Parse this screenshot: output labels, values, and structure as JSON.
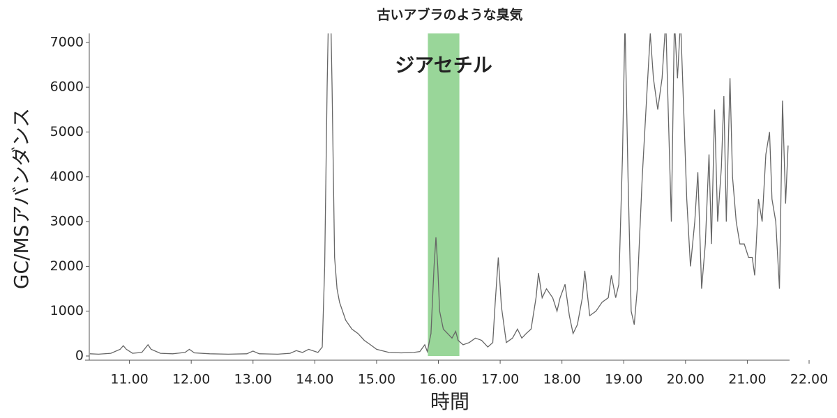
{
  "chart_data": {
    "type": "line",
    "title": "古いアブラのような臭気",
    "ylabel": "GC/MSアバンダンス",
    "xlabel": "時間",
    "xlim": [
      10.35,
      22.0
    ],
    "ylim": [
      0,
      7200
    ],
    "xticks": [
      {
        "value": 11,
        "label": "11.00"
      },
      {
        "value": 12,
        "label": "12.00"
      },
      {
        "value": 13,
        "label": "13.00"
      },
      {
        "value": 14,
        "label": "14.00"
      },
      {
        "value": 15,
        "label": "15.00"
      },
      {
        "value": 16,
        "label": "16.00"
      },
      {
        "value": 17,
        "label": "17.00"
      },
      {
        "value": 18,
        "label": "18.00"
      },
      {
        "value": 19,
        "label": "19.00"
      },
      {
        "value": 20,
        "label": "20.00"
      },
      {
        "value": 21,
        "label": "21.00"
      },
      {
        "value": 22,
        "label": "22.00"
      }
    ],
    "yticks": [
      0,
      1000,
      2000,
      3000,
      4000,
      5000,
      6000,
      7000
    ],
    "highlight": {
      "label": "ジアセチル",
      "xlim": [
        15.83,
        16.34
      ],
      "color": "#99d699",
      "label_color": "#22aa22"
    },
    "color": "#666666",
    "x": [
      10.36,
      10.5,
      10.7,
      10.85,
      10.9,
      10.95,
      11.05,
      11.2,
      11.3,
      11.35,
      11.5,
      11.7,
      11.9,
      11.97,
      12.05,
      12.3,
      12.6,
      12.9,
      13.0,
      13.1,
      13.4,
      13.6,
      13.7,
      13.8,
      13.9,
      14.05,
      14.12,
      14.16,
      14.2,
      14.24,
      14.28,
      14.32,
      14.36,
      14.4,
      14.5,
      14.6,
      14.7,
      14.8,
      14.9,
      15.0,
      15.2,
      15.4,
      15.6,
      15.7,
      15.78,
      15.82,
      15.88,
      15.93,
      15.96,
      15.99,
      16.02,
      16.08,
      16.15,
      16.22,
      16.28,
      16.32,
      16.4,
      16.5,
      16.6,
      16.7,
      16.8,
      16.88,
      16.92,
      16.97,
      17.02,
      17.1,
      17.2,
      17.28,
      17.35,
      17.42,
      17.5,
      17.58,
      17.62,
      17.68,
      17.75,
      17.85,
      17.92,
      17.97,
      18.05,
      18.12,
      18.18,
      18.25,
      18.33,
      18.37,
      18.45,
      18.55,
      18.65,
      18.75,
      18.8,
      18.87,
      18.92,
      18.98,
      19.02,
      19.07,
      19.12,
      19.17,
      19.22,
      19.3,
      19.38,
      19.43,
      19.48,
      19.55,
      19.62,
      19.68,
      19.72,
      19.77,
      19.82,
      19.87,
      19.92,
      19.97,
      20.02,
      20.08,
      20.15,
      20.2,
      20.26,
      20.32,
      20.38,
      20.42,
      20.47,
      20.52,
      20.58,
      20.62,
      20.66,
      20.72,
      20.76,
      20.82,
      20.88,
      20.95,
      21.02,
      21.08,
      21.12,
      21.18,
      21.24,
      21.3,
      21.36,
      21.4,
      21.46,
      21.52,
      21.57,
      21.62,
      21.66
    ],
    "values": [
      50,
      40,
      60,
      150,
      230,
      150,
      60,
      80,
      250,
      150,
      60,
      50,
      80,
      150,
      70,
      50,
      40,
      50,
      110,
      50,
      40,
      60,
      120,
      80,
      150,
      80,
      200,
      2000,
      6000,
      9000,
      6000,
      2200,
      1500,
      1200,
      800,
      600,
      500,
      350,
      250,
      150,
      80,
      70,
      80,
      100,
      250,
      100,
      500,
      2000,
      2650,
      2000,
      1000,
      600,
      500,
      400,
      550,
      350,
      250,
      300,
      400,
      350,
      200,
      300,
      1200,
      2200,
      1100,
      300,
      400,
      600,
      400,
      500,
      600,
      1300,
      1850,
      1300,
      1500,
      1300,
      1000,
      1300,
      1600,
      900,
      500,
      700,
      1300,
      1900,
      900,
      1000,
      1200,
      1300,
      1800,
      1300,
      1600,
      4500,
      7500,
      4000,
      1000,
      700,
      1500,
      4000,
      6000,
      7200,
      6200,
      5500,
      6200,
      7500,
      5500,
      3000,
      7500,
      6200,
      7500,
      5500,
      3500,
      2000,
      3000,
      4100,
      1500,
      2500,
      4500,
      2500,
      5500,
      3000,
      4200,
      5800,
      3000,
      6200,
      4000,
      3000,
      2500,
      2500,
      2200,
      2200,
      1800,
      3500,
      3000,
      4500,
      5000,
      3500,
      3000,
      1500,
      5700,
      3400,
      4700
    ]
  }
}
